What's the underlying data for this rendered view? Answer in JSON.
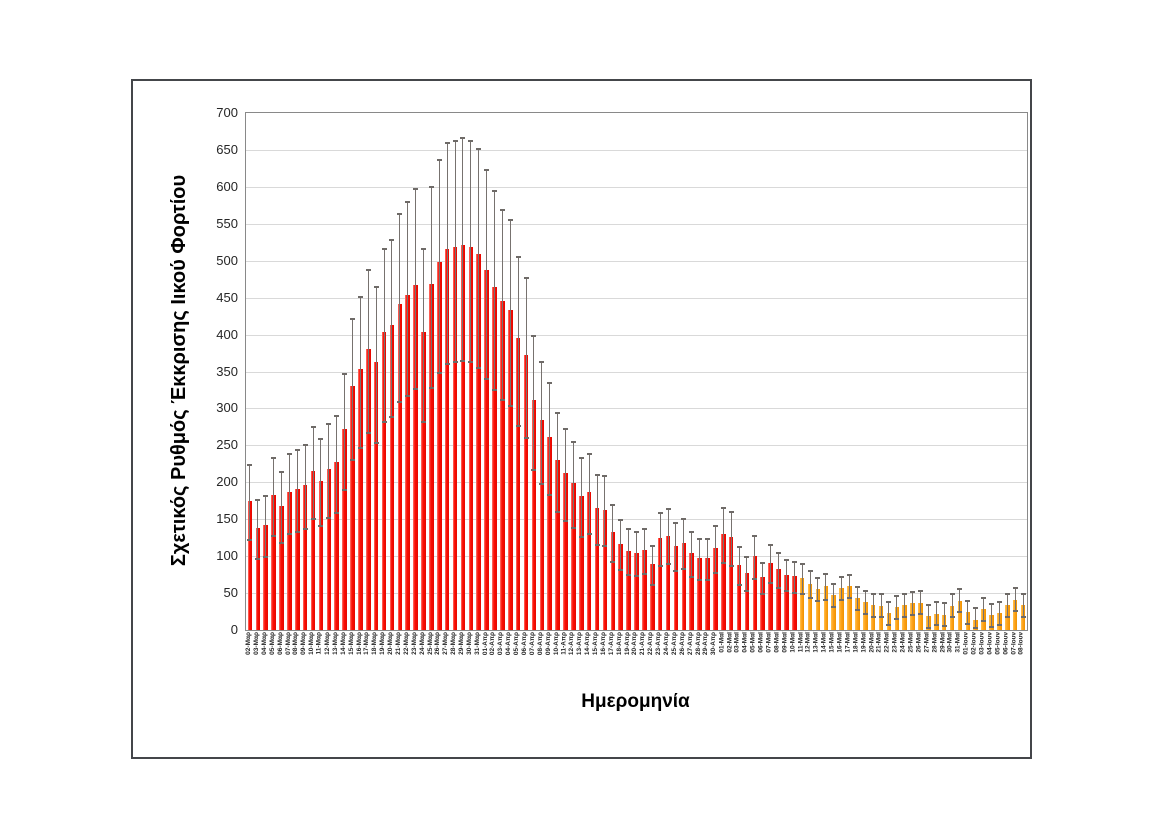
{
  "chart_data": {
    "type": "bar",
    "title": "",
    "xlabel": "Ημερομηνία",
    "ylabel": "Σχετικός Ρυθμός Έκκρισης Ιικού Φορτίου",
    "ylim": [
      0,
      700
    ],
    "y_tick_step": 50,
    "y_tick_labels": [
      "0",
      "50",
      "100",
      "150",
      "200",
      "250",
      "300",
      "350",
      "400",
      "450",
      "500",
      "550",
      "600",
      "650",
      "700"
    ],
    "grid": "horizontal",
    "legend": "none",
    "error_bars": true,
    "first_orange_index": 70,
    "colors": {
      "red_bars": "#FB0F05",
      "orange_bars": "#FFA41C",
      "error_bar": "#77726F",
      "gridline": "#D9D9D9",
      "plot_border": "#898989",
      "figure_border": "#44464A"
    },
    "categories": [
      "02-Μαρ",
      "03-Μαρ",
      "04-Μαρ",
      "05-Μαρ",
      "06-Μαρ",
      "07-Μαρ",
      "08-Μαρ",
      "09-Μαρ",
      "10-Μαρ",
      "11-Μαρ",
      "12-Μαρ",
      "13-Μαρ",
      "14-Μαρ",
      "15-Μαρ",
      "16-Μαρ",
      "17-Μαρ",
      "18-Μαρ",
      "19-Μαρ",
      "20-Μαρ",
      "21-Μαρ",
      "22-Μαρ",
      "23-Μαρ",
      "24-Μαρ",
      "25-Μαρ",
      "26-Μαρ",
      "27-Μαρ",
      "28-Μαρ",
      "29-Μαρ",
      "30-Μαρ",
      "31-Μαρ",
      "01-Απρ",
      "02-Απρ",
      "03-Απρ",
      "04-Απρ",
      "05-Απρ",
      "06-Απρ",
      "07-Απρ",
      "08-Απρ",
      "09-Απρ",
      "10-Απρ",
      "11-Απρ",
      "12-Απρ",
      "13-Απρ",
      "14-Απρ",
      "15-Απρ",
      "16-Απρ",
      "17-Απρ",
      "18-Απρ",
      "19-Απρ",
      "20-Απρ",
      "21-Απρ",
      "22-Απρ",
      "23-Απρ",
      "24-Απρ",
      "25-Απρ",
      "26-Απρ",
      "27-Απρ",
      "28-Απρ",
      "29-Απρ",
      "30-Απρ",
      "01-Μαϊ",
      "02-Μαϊ",
      "03-Μαϊ",
      "04-Μαϊ",
      "05-Μαϊ",
      "06-Μαϊ",
      "07-Μαϊ",
      "08-Μαϊ",
      "09-Μαϊ",
      "10-Μαϊ",
      "11-Μαϊ",
      "12-Μαϊ",
      "13-Μαϊ",
      "14-Μαϊ",
      "15-Μαϊ",
      "16-Μαϊ",
      "17-Μαϊ",
      "18-Μαϊ",
      "19-Μαϊ",
      "20-Μαϊ",
      "21-Μαϊ",
      "22-Μαϊ",
      "23-Μαϊ",
      "24-Μαϊ",
      "25-Μαϊ",
      "26-Μαϊ",
      "27-Μαϊ",
      "28-Μαϊ",
      "29-Μαϊ",
      "30-Μαϊ",
      "31-Μαϊ",
      "01-Ιουν",
      "02-Ιουν",
      "03-Ιουν",
      "04-Ιουν",
      "05-Ιουν",
      "06-Ιουν",
      "07-Ιουν",
      "08-Ιουν"
    ],
    "values": [
      175,
      138,
      142,
      183,
      168,
      187,
      191,
      196,
      215,
      202,
      218,
      227,
      272,
      330,
      353,
      381,
      363,
      403,
      413,
      441,
      453,
      467,
      403,
      469,
      498,
      516,
      518,
      521,
      518,
      509,
      487,
      465,
      445,
      434,
      395,
      373,
      312,
      284,
      262,
      230,
      213,
      199,
      182,
      187,
      165,
      163,
      133,
      117,
      107,
      105,
      108,
      89,
      124,
      128,
      114,
      118,
      104,
      97,
      97,
      111,
      130,
      126,
      88,
      77,
      100,
      72,
      91,
      82,
      75,
      73,
      70,
      63,
      55,
      60,
      47,
      57,
      59,
      43,
      38,
      34,
      33,
      23,
      31,
      34,
      36,
      37,
      19,
      22,
      21,
      33,
      40,
      24,
      14,
      28,
      20,
      23,
      34,
      41,
      34
    ],
    "error_upper": [
      224,
      177,
      182,
      234,
      215,
      239,
      244,
      251,
      275,
      259,
      279,
      291,
      348,
      422,
      452,
      488,
      465,
      516,
      529,
      564,
      580,
      598,
      516,
      600,
      637,
      660,
      663,
      667,
      663,
      652,
      623,
      595,
      570,
      556,
      506,
      477,
      399,
      364,
      335,
      294,
      273,
      255,
      233,
      239,
      211,
      209,
      170,
      150,
      137,
      134,
      138,
      114,
      159,
      164,
      146,
      151,
      133,
      124,
      124,
      142,
      166,
      161,
      113,
      99,
      128,
      92,
      116,
      105,
      96,
      93,
      90,
      81,
      71,
      77,
      63,
      73,
      75,
      59,
      54,
      50,
      49,
      39,
      47,
      50,
      52,
      53,
      35,
      38,
      37,
      49,
      56,
      40,
      30,
      44,
      36,
      39,
      50,
      57,
      50
    ],
    "error_lower": [
      123,
      97,
      99,
      128,
      118,
      131,
      134,
      137,
      151,
      141,
      153,
      159,
      190,
      231,
      247,
      267,
      254,
      282,
      289,
      309,
      317,
      327,
      282,
      328,
      349,
      361,
      363,
      365,
      363,
      356,
      341,
      326,
      312,
      304,
      277,
      261,
      218,
      199,
      183,
      161,
      149,
      139,
      127,
      131,
      116,
      114,
      93,
      82,
      75,
      74,
      76,
      62,
      87,
      90,
      80,
      83,
      73,
      68,
      68,
      78,
      91,
      88,
      62,
      54,
      70,
      50,
      64,
      57,
      53,
      51,
      49,
      44,
      40,
      42,
      32,
      42,
      44,
      28,
      23,
      19,
      18,
      8,
      16,
      19,
      21,
      22,
      4,
      7,
      6,
      18,
      25,
      9,
      3,
      13,
      5,
      8,
      19,
      26,
      19
    ]
  }
}
